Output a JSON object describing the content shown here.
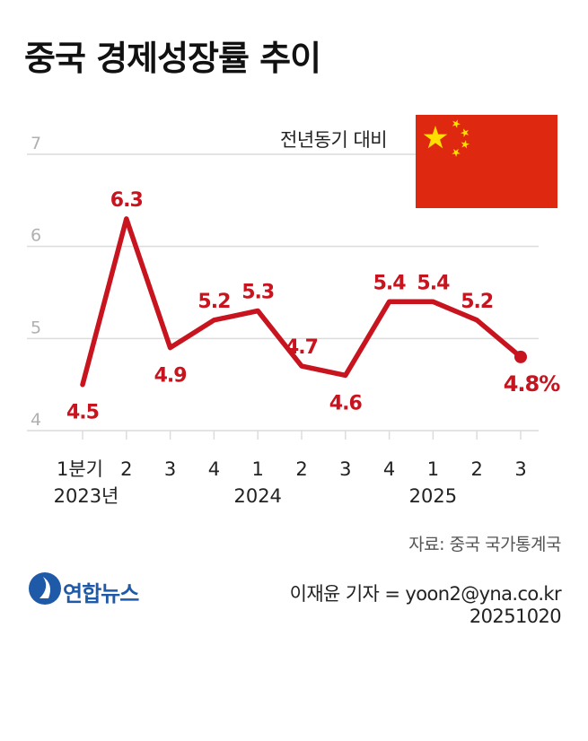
{
  "title": "중국 경제성장률 추이",
  "subtitle": "전년동기 대비",
  "source": "자료: 중국 국가통계국",
  "logo": "연합뉴스",
  "credit": "이재윤 기자 = yoon2@yna.co.kr",
  "date": "20251020",
  "flag": {
    "field_color": "#de2910",
    "star_color": "#ffde00"
  },
  "chart_data": {
    "type": "line",
    "ylim": [
      4,
      7
    ],
    "yticks": [
      4,
      5,
      6,
      7
    ],
    "grid": true,
    "line_color": "#c8141e",
    "categories": [
      "1분기",
      "2",
      "3",
      "4",
      "1",
      "2",
      "3",
      "4",
      "1",
      "2",
      "3"
    ],
    "year_labels": [
      {
        "label": "2023년",
        "index": 0
      },
      {
        "label": "2024",
        "index": 4
      },
      {
        "label": "2025",
        "index": 8
      }
    ],
    "values": [
      4.5,
      6.3,
      4.9,
      5.2,
      5.3,
      4.7,
      4.6,
      5.4,
      5.4,
      5.2,
      4.8
    ],
    "value_labels": [
      "4.5",
      "6.3",
      "4.9",
      "5.2",
      "5.3",
      "4.7",
      "4.6",
      "5.4",
      "5.4",
      "5.2",
      "4.8%"
    ]
  }
}
